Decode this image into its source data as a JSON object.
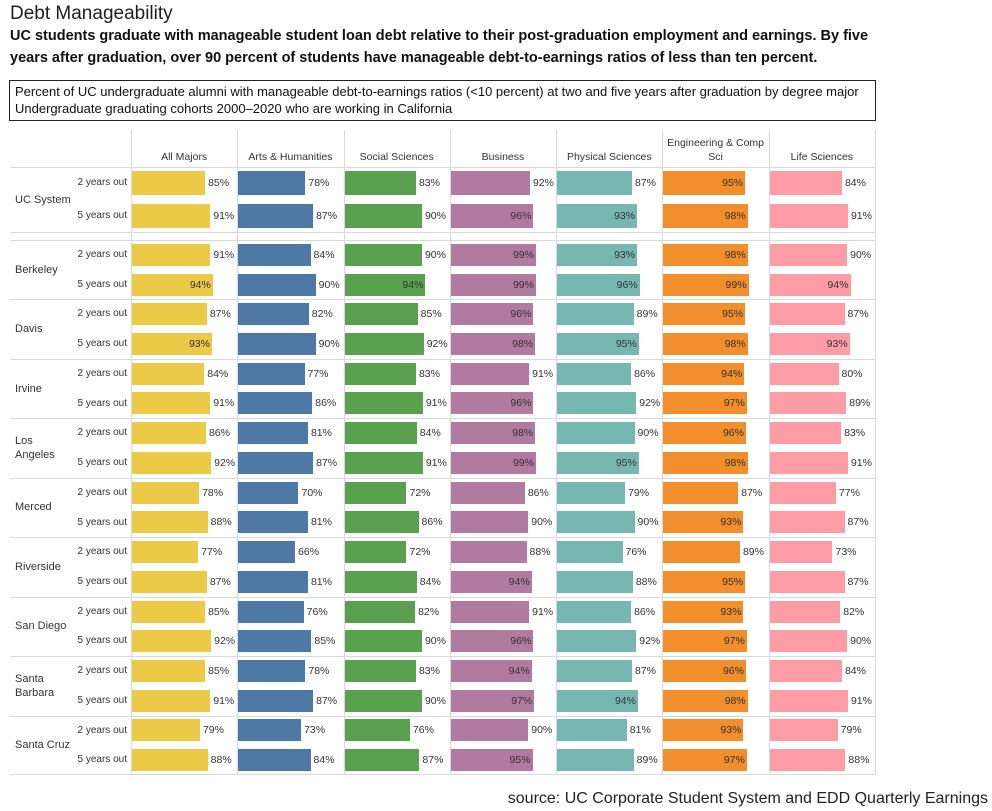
{
  "page": {
    "title": "Debt Manageability",
    "summary": "UC students graduate with manageable student loan debt relative to their post-graduation employment and earnings. By five years after graduation, over 90 percent of students have manageable debt-to-earnings ratios of less than ten percent.",
    "source": "source: UC Corporate Student System and EDD Quarterly Earnings"
  },
  "chart_data": {
    "type": "bar",
    "title": "Percent of UC undergraduate alumni with manageable debt-to-earnings ratios (<10 percent) at two and five years after graduation by degree major",
    "subtitle": "Undergraduate graduating cohorts 2000–2020 who are working in California",
    "grid": true,
    "value_suffix": "%",
    "categories": [
      "All Majors",
      "Arts & Humanities",
      "Social Sciences",
      "Business",
      "Physical Sciences",
      "Engineering & Comp Sci",
      "Life Sciences"
    ],
    "colors": [
      "#EDC948",
      "#4E79A7",
      "#59A14F",
      "#B07AA1",
      "#76B7B2",
      "#F28E2B",
      "#FF9DA7"
    ],
    "groups": [
      {
        "name": "UC System",
        "rows": [
          {
            "label": "2 years out",
            "values": [
              85,
              78,
              83,
              92,
              87,
              95,
              84
            ]
          },
          {
            "label": "5 years out",
            "values": [
              91,
              87,
              90,
              96,
              93,
              98,
              91
            ]
          }
        ]
      },
      {
        "name": "Berkeley",
        "rows": [
          {
            "label": "2 years out",
            "values": [
              91,
              84,
              90,
              99,
              93,
              98,
              90
            ]
          },
          {
            "label": "5 years out",
            "values": [
              94,
              90,
              94,
              99,
              96,
              99,
              94
            ]
          }
        ]
      },
      {
        "name": "Davis",
        "rows": [
          {
            "label": "2 years out",
            "values": [
              87,
              82,
              85,
              96,
              89,
              95,
              87
            ]
          },
          {
            "label": "5 years out",
            "values": [
              93,
              90,
              92,
              98,
              95,
              98,
              93
            ]
          }
        ]
      },
      {
        "name": "Irvine",
        "rows": [
          {
            "label": "2 years out",
            "values": [
              84,
              77,
              83,
              91,
              86,
              94,
              80
            ]
          },
          {
            "label": "5 years out",
            "values": [
              91,
              86,
              91,
              96,
              92,
              97,
              89
            ]
          }
        ]
      },
      {
        "name": "Los Angeles",
        "rows": [
          {
            "label": "2 years out",
            "values": [
              86,
              81,
              84,
              98,
              90,
              96,
              83
            ]
          },
          {
            "label": "5 years out",
            "values": [
              92,
              87,
              91,
              99,
              95,
              98,
              91
            ]
          }
        ]
      },
      {
        "name": "Merced",
        "rows": [
          {
            "label": "2 years out",
            "values": [
              78,
              70,
              72,
              86,
              79,
              87,
              77
            ]
          },
          {
            "label": "5 years out",
            "values": [
              88,
              81,
              86,
              90,
              90,
              93,
              87
            ]
          }
        ]
      },
      {
        "name": "Riverside",
        "rows": [
          {
            "label": "2 years out",
            "values": [
              77,
              66,
              72,
              88,
              76,
              89,
              73
            ]
          },
          {
            "label": "5 years out",
            "values": [
              87,
              81,
              84,
              94,
              88,
              95,
              87
            ]
          }
        ]
      },
      {
        "name": "San Diego",
        "rows": [
          {
            "label": "2 years out",
            "values": [
              85,
              76,
              82,
              91,
              86,
              93,
              82
            ]
          },
          {
            "label": "5 years out",
            "values": [
              92,
              85,
              90,
              96,
              92,
              97,
              90
            ]
          }
        ]
      },
      {
        "name": "Santa Barbara",
        "rows": [
          {
            "label": "2 years out",
            "values": [
              85,
              78,
              83,
              94,
              87,
              96,
              84
            ]
          },
          {
            "label": "5 years out",
            "values": [
              91,
              87,
              90,
              97,
              94,
              98,
              91
            ]
          }
        ]
      },
      {
        "name": "Santa Cruz",
        "rows": [
          {
            "label": "2 years out",
            "values": [
              79,
              73,
              76,
              90,
              81,
              93,
              79
            ]
          },
          {
            "label": "5 years out",
            "values": [
              88,
              84,
              87,
              95,
              89,
              97,
              88
            ]
          }
        ]
      }
    ]
  }
}
